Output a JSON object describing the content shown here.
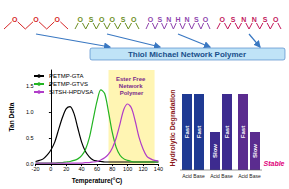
{
  "header": {
    "title": "Thiol Michael Network Polymer"
  },
  "structures": [
    {
      "color": "#d62728",
      "atoms": [
        "O",
        "O",
        "O"
      ]
    },
    {
      "color": "#6b8e23",
      "atoms": [
        "O",
        "S",
        "O",
        "O",
        "S",
        "O"
      ]
    },
    {
      "color": "#8e44ad",
      "atoms": [
        "O",
        "S",
        "N",
        "H",
        "N",
        "S",
        "O"
      ]
    },
    {
      "color": "#c2185b",
      "atoms": [
        "O",
        "S",
        "N",
        "N",
        "S",
        "O"
      ]
    }
  ],
  "chart_data": {
    "type": "line",
    "x": [
      -20,
      -15,
      -10,
      -5,
      0,
      5,
      10,
      15,
      20,
      25,
      30,
      35,
      40,
      45,
      50,
      55,
      60,
      65,
      70,
      75,
      80,
      85,
      90,
      95,
      100,
      105,
      110,
      115,
      120,
      125,
      130,
      135,
      140
    ],
    "series": [
      {
        "name": "PETMP-GTA",
        "color": "#000000",
        "values": [
          0.05,
          0.07,
          0.1,
          0.17,
          0.27,
          0.42,
          0.66,
          0.89,
          1.06,
          1.1,
          0.97,
          0.69,
          0.42,
          0.24,
          0.14,
          0.08,
          0.06,
          0.05,
          0.04,
          0.04,
          0.04,
          0.04,
          0.04,
          0.04,
          0.04,
          0.04,
          0.04,
          0.04,
          0.04,
          0.04,
          0.04,
          0.04,
          0.04
        ]
      },
      {
        "name": "PETMP-GTVS",
        "color": "#22b422",
        "values": [
          0.02,
          0.02,
          0.02,
          0.02,
          0.02,
          0.02,
          0.03,
          0.03,
          0.04,
          0.05,
          0.07,
          0.1,
          0.16,
          0.28,
          0.5,
          0.85,
          1.2,
          1.42,
          1.35,
          1.0,
          0.6,
          0.32,
          0.17,
          0.1,
          0.07,
          0.05,
          0.04,
          0.04,
          0.04,
          0.04,
          0.04,
          0.04,
          0.04
        ]
      },
      {
        "name": "SITSH-HPDVSA",
        "color": "#b03cc8",
        "values": [
          0.02,
          0.02,
          0.02,
          0.02,
          0.02,
          0.02,
          0.02,
          0.02,
          0.02,
          0.02,
          0.02,
          0.02,
          0.02,
          0.03,
          0.03,
          0.04,
          0.05,
          0.08,
          0.12,
          0.19,
          0.31,
          0.5,
          0.77,
          1.05,
          1.15,
          1.07,
          0.81,
          0.5,
          0.29,
          0.15,
          0.1,
          0.07,
          0.06
        ]
      }
    ],
    "xlabel": "Temperature(°C)",
    "ylabel": "Tan Delta",
    "xlim": [
      -20,
      140
    ],
    "xticks": [
      -20,
      0,
      20,
      40,
      60,
      80,
      100,
      120,
      140
    ],
    "ylim": [
      0,
      1.8
    ],
    "yticks": [
      {
        "value": 0,
        "label": "0.0"
      },
      {
        "value": 0.5,
        "label": "0.5"
      },
      {
        "value": 1,
        "label": "1.0"
      },
      {
        "value": 1.5,
        "label": "1.5"
      }
    ],
    "grid": false,
    "legend": "top-left",
    "highlight": {
      "label": "Ester Free Network Polymer",
      "x": [
        75,
        135
      ],
      "color": "#fff3a0"
    }
  },
  "degradation": {
    "title": "Hydrolytic Degradation",
    "levels": [
      "Slow",
      "Fast"
    ],
    "groups": [
      {
        "color": "#1f3a93",
        "bars": [
          {
            "label": "Acid",
            "rate": "Fast"
          },
          {
            "label": "Base",
            "rate": "Fast"
          }
        ]
      },
      {
        "color": "#3d2b8f",
        "bars": [
          {
            "label": "Acid",
            "rate": "Slow"
          },
          {
            "label": "Base",
            "rate": "Fast"
          }
        ]
      },
      {
        "color": "#5b2c8f",
        "bars": [
          {
            "label": "Acid",
            "rate": "Fast"
          },
          {
            "label": "Base",
            "rate": "Slow"
          }
        ]
      }
    ],
    "stable": "Stable"
  }
}
